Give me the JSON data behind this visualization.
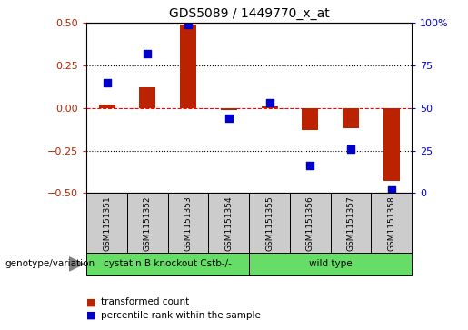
{
  "title": "GDS5089 / 1449770_x_at",
  "samples": [
    "GSM1151351",
    "GSM1151352",
    "GSM1151353",
    "GSM1151354",
    "GSM1151355",
    "GSM1151356",
    "GSM1151357",
    "GSM1151358"
  ],
  "red_values": [
    0.02,
    0.12,
    0.49,
    -0.01,
    0.01,
    -0.13,
    -0.12,
    -0.43
  ],
  "blue_values_pct": [
    65,
    82,
    99,
    44,
    53,
    16,
    26,
    2
  ],
  "red_color": "#bb2200",
  "blue_color": "#0000cc",
  "ylim_left": [
    -0.5,
    0.5
  ],
  "ylim_right": [
    0,
    100
  ],
  "yticks_left": [
    -0.5,
    -0.25,
    0.0,
    0.25,
    0.5
  ],
  "yticks_right": [
    0,
    25,
    50,
    75,
    100
  ],
  "genotype_groups": [
    {
      "label": "cystatin B knockout Cstb-/-",
      "n": 4
    },
    {
      "label": "wild type",
      "n": 4
    }
  ],
  "genotype_label": "genotype/variation",
  "legend_red": "transformed count",
  "legend_blue": "percentile rank within the sample",
  "background_color": "#ffffff",
  "bar_width": 0.4,
  "blue_square_size": 40,
  "green_color": "#66dd66",
  "gray_color": "#cccccc"
}
